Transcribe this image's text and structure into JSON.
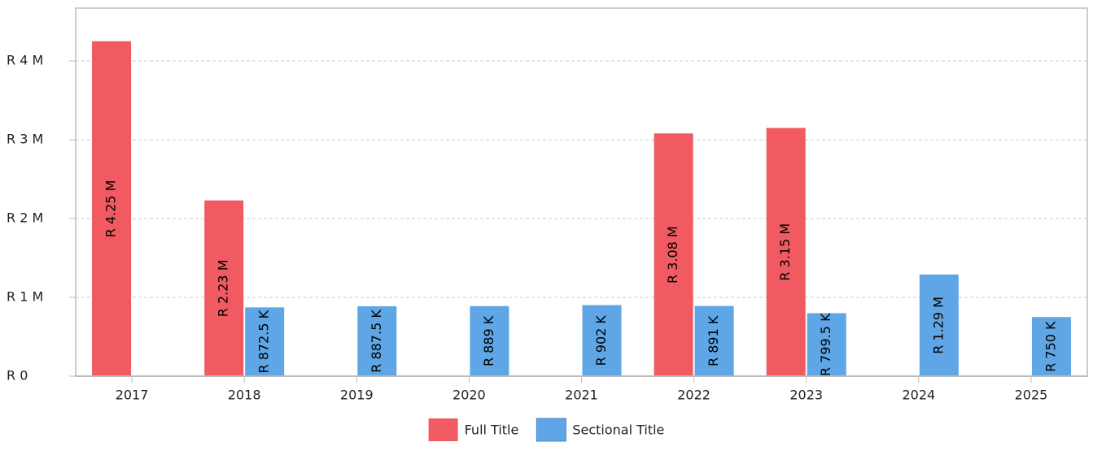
{
  "chart_data": {
    "type": "bar",
    "categories": [
      "2017",
      "2018",
      "2019",
      "2020",
      "2021",
      "2022",
      "2023",
      "2024",
      "2025"
    ],
    "series": [
      {
        "name": "Full Title",
        "color": "#f05a60",
        "values": [
          4250000,
          2230000,
          null,
          null,
          null,
          3080000,
          3150000,
          null,
          null
        ],
        "value_labels": [
          "R 4.25 M",
          "R 2.23 M",
          null,
          null,
          null,
          "R 3.08 M",
          "R 3.15 M",
          null,
          null
        ]
      },
      {
        "name": "Sectional Title",
        "color": "#5ea6e6",
        "values": [
          null,
          872500,
          887500,
          889000,
          902000,
          891000,
          799500,
          1290000,
          750000
        ],
        "value_labels": [
          null,
          "R 872.5 K",
          "R 887.5 K",
          "R 889 K",
          "R 902 K",
          "R 891 K",
          "R 799.5 K",
          "R 1.29 M",
          "R 750 K"
        ]
      }
    ],
    "ylim": [
      0,
      4670000
    ],
    "yticks": [
      {
        "value": 0,
        "label": "R 0"
      },
      {
        "value": 1000000,
        "label": "R 1 M"
      },
      {
        "value": 2000000,
        "label": "R 2 M"
      },
      {
        "value": 3000000,
        "label": "R 3 M"
      },
      {
        "value": 4000000,
        "label": "R 4 M"
      }
    ],
    "grid": true,
    "legend": "bottom"
  }
}
